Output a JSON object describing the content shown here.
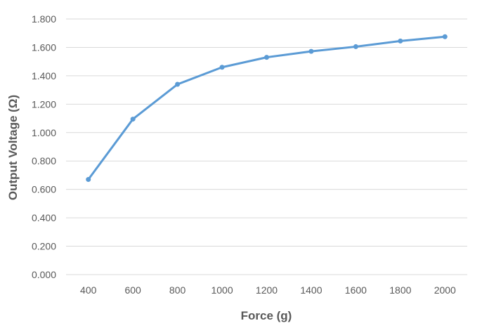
{
  "chart_data": {
    "type": "line",
    "title": "",
    "xlabel": "Force (g)",
    "ylabel": "Output Voltage (Ω)",
    "categories": [
      "400",
      "600",
      "800",
      "1000",
      "1200",
      "1400",
      "1600",
      "1800",
      "2000"
    ],
    "y_tick_labels": [
      "0.000",
      "0.200",
      "0.400",
      "0.600",
      "0.800",
      "1.000",
      "1.200",
      "1.400",
      "1.600",
      "1.800"
    ],
    "ylim": [
      0,
      1.8
    ],
    "y_step": 0.2,
    "grid": true,
    "series": [
      {
        "values": [
          0.67,
          1.095,
          1.34,
          1.46,
          1.53,
          1.572,
          1.605,
          1.645,
          1.675
        ],
        "color": "#5B9BD5"
      }
    ],
    "colors": {
      "gridline": "#d9d9d9",
      "axis": "#d9d9d9",
      "text": "#595959"
    }
  }
}
